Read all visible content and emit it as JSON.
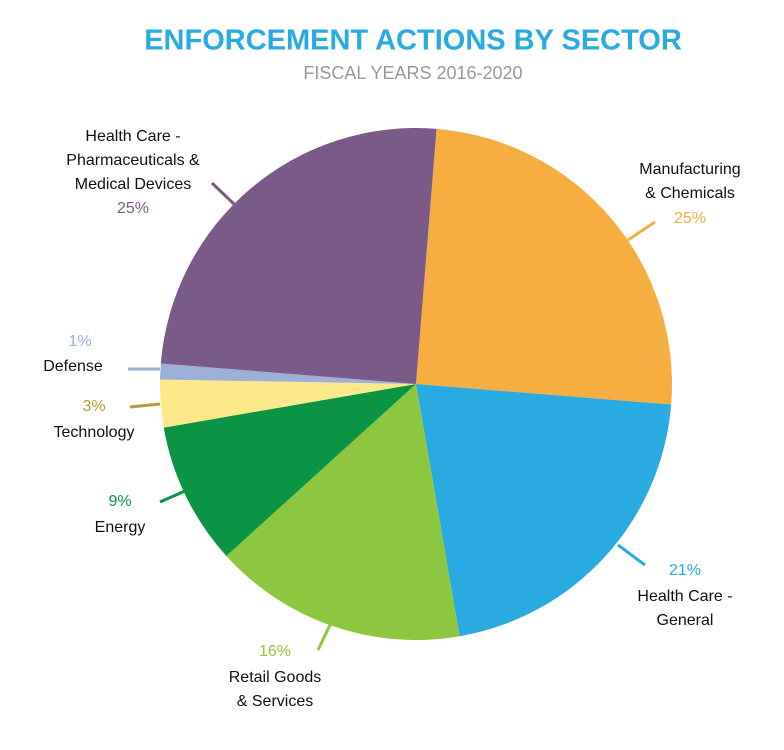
{
  "chart_data": {
    "type": "pie",
    "title": "ENFORCEMENT ACTIONS BY SECTOR",
    "subtitle": "FISCAL YEARS 2016-2020",
    "categories": [
      "Manufacturing\n& Chemicals",
      "Health Care -\nGeneral",
      "Retail Goods\n& Services",
      "Energy",
      "Technology",
      "Defense",
      "Health Care -\nPharmaceuticals &\nMedical Devices"
    ],
    "values": [
      25,
      21,
      16,
      9,
      3,
      1,
      25
    ],
    "value_labels": [
      "25%",
      "21%",
      "16%",
      "9%",
      "3%",
      "1%",
      "25%"
    ],
    "colors": [
      "#f7ae41",
      "#29abe2",
      "#8dc63f",
      "#0b9444",
      "#fde98a",
      "#9cb0d8",
      "#7a5a88"
    ]
  }
}
